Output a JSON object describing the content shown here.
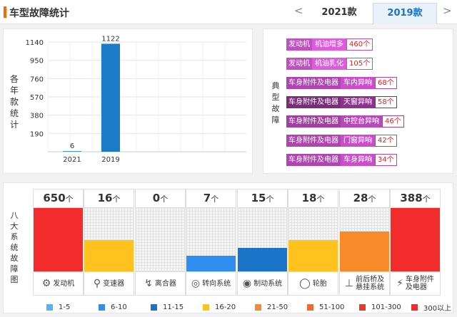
{
  "header": {
    "title": "车型故障统计",
    "prev": "<",
    "next": ">",
    "tabs": [
      {
        "label": "2021款",
        "active": false
      },
      {
        "label": "2019款",
        "active": true
      }
    ]
  },
  "chart_data": {
    "type": "bar",
    "ylabel": "各年款统计",
    "categories": [
      "2021",
      "2019"
    ],
    "values": [
      6,
      1122
    ],
    "yticks": [
      190,
      380,
      570,
      760,
      950,
      1140
    ],
    "ylim": [
      0,
      1140
    ],
    "grid": true,
    "bar_color": "#1a7bc8"
  },
  "typical": {
    "label": "典型故障",
    "items": [
      {
        "category": "发动机",
        "subtype": "机油增多",
        "count": "460个",
        "color": "#c04fc0"
      },
      {
        "category": "发动机",
        "subtype": "机油乳化",
        "count": "105个",
        "color": "#c04fc0"
      },
      {
        "category": "车身附件及电器",
        "subtype": "车内异响",
        "count": "68个",
        "color": "#b044b0"
      },
      {
        "category": "车身附件及电器",
        "subtype": "天窗异响",
        "count": "58个",
        "color": "#7b2c7b"
      },
      {
        "category": "车身附件及电器",
        "subtype": "中控台异响",
        "count": "46个",
        "color": "#a040a0"
      },
      {
        "category": "车身附件及电器",
        "subtype": "门窗异响",
        "count": "42个",
        "color": "#b044b0"
      },
      {
        "category": "车身附件及电器",
        "subtype": "车身异响",
        "count": "34个",
        "color": "#b044b0"
      }
    ]
  },
  "systems": {
    "label": "八大系统故障图",
    "unit": "个",
    "items": [
      {
        "name": "发动机",
        "count": "650",
        "level": 1.0,
        "color": "#f22c2c",
        "icon": "engine-icon",
        "glyph": "⚙"
      },
      {
        "name": "变速器",
        "count": "16",
        "level": 0.5,
        "color": "#ffc21f",
        "icon": "gearshift-icon",
        "glyph": "⚲"
      },
      {
        "name": "离合器",
        "count": "0",
        "level": 0.0,
        "color": "#f5f5f5",
        "icon": "clutch-icon",
        "glyph": "↯"
      },
      {
        "name": "转向系统",
        "count": "7",
        "level": 0.25,
        "color": "#2f8ef0",
        "icon": "steering-wheel-icon",
        "glyph": "◎"
      },
      {
        "name": "制动系统",
        "count": "15",
        "level": 0.375,
        "color": "#1a75c8",
        "icon": "brake-disc-icon",
        "glyph": "◉"
      },
      {
        "name": "轮胎",
        "count": "18",
        "level": 0.5,
        "color": "#ffc21f",
        "icon": "tire-icon",
        "glyph": "◯"
      },
      {
        "name": "前后桥及\n悬挂系统",
        "count": "28",
        "level": 0.625,
        "color": "#f88a2a",
        "icon": "suspension-icon",
        "glyph": "⊥"
      },
      {
        "name": "车身附件\n及电器",
        "count": "388",
        "level": 1.0,
        "color": "#f22c2c",
        "icon": "battery-icon",
        "glyph": "⚡"
      }
    ]
  },
  "legend": [
    {
      "label": "1-5",
      "color": "#4fb7f5"
    },
    {
      "label": "6-10",
      "color": "#2f8ef0"
    },
    {
      "label": "11-15",
      "color": "#1a75c8"
    },
    {
      "label": "16-20",
      "color": "#ffc21f"
    },
    {
      "label": "21-50",
      "color": "#f88a2a"
    },
    {
      "label": "51-100",
      "color": "#f5672a"
    },
    {
      "label": "101-300",
      "color": "#e63b2b"
    },
    {
      "label": "300以上",
      "color": "#f22c2c"
    }
  ]
}
